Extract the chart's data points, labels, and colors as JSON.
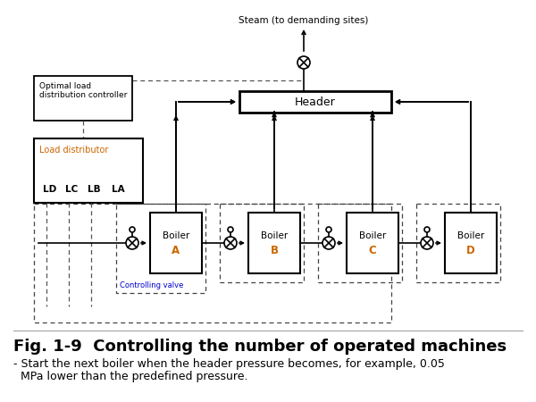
{
  "title": "Fig. 1-9  Controlling the number of operated machines",
  "subtitle_line1": "- Start the next boiler when the header pressure becomes, for example, 0.05",
  "subtitle_line2": "  MPa lower than the predefined pressure.",
  "title_fontsize": 13,
  "subtitle_fontsize": 9,
  "bg_color": "#ffffff",
  "text_color": "#000000",
  "boiler_label_color": "#cc6600",
  "load_dist_label_color": "#cc6600",
  "steam_text": "Steam (to demanding sites)",
  "header_text": "Header",
  "opt_controller_text": "Optimal load\ndistribution controller",
  "load_dist_text": "Load distributor",
  "ld_labels": [
    "LD",
    "LC",
    "LB",
    "LA"
  ],
  "controlling_valve_text": "Controlling valve",
  "boilers": [
    "A",
    "B",
    "C",
    "D"
  ]
}
